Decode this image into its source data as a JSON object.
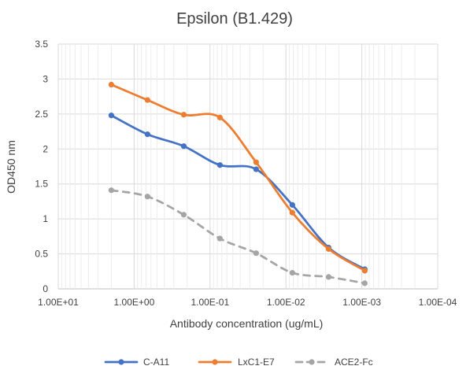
{
  "chart_data": {
    "type": "line",
    "title": "Epsilon (B1.429)",
    "xlabel": "Antibody concentration (ug/mL)",
    "ylabel": "OD450 nm",
    "x_scale": "log-reversed",
    "xlim": [
      10,
      0.0001
    ],
    "ylim": [
      0,
      3.5
    ],
    "y_ticks": [
      "0",
      "0.5",
      "1",
      "1.5",
      "2",
      "2.5",
      "3",
      "3.5"
    ],
    "x_ticks": [
      "1.00E+01",
      "1.00E+00",
      "1.00E-01",
      "1.00E-02",
      "1.00E-03",
      "1.00E-04"
    ],
    "x": [
      2,
      0.667,
      0.222,
      0.0741,
      0.0247,
      0.00823,
      0.00274,
      0.000914
    ],
    "grid": true,
    "legend_position": "bottom",
    "series": [
      {
        "name": "C-A11",
        "color": "#4472C4",
        "dashed": false,
        "values": [
          2.48,
          2.21,
          2.04,
          1.77,
          1.71,
          1.2,
          0.59,
          0.28
        ]
      },
      {
        "name": "LxC1-E7",
        "color": "#ED7D31",
        "dashed": false,
        "values": [
          2.92,
          2.7,
          2.49,
          2.45,
          1.81,
          1.09,
          0.57,
          0.26
        ]
      },
      {
        "name": "ACE2-Fc",
        "color": "#A5A5A5",
        "dashed": true,
        "values": [
          1.41,
          1.32,
          1.06,
          0.72,
          0.51,
          0.23,
          0.17,
          0.08
        ]
      }
    ]
  }
}
